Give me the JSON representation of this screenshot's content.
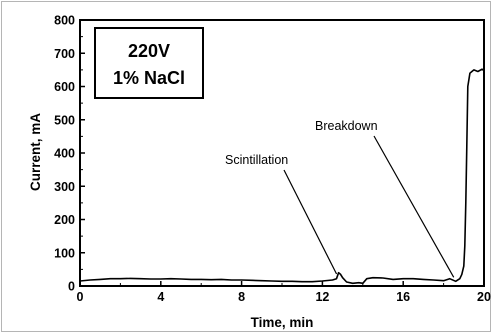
{
  "chart_data": {
    "type": "line",
    "title": "",
    "xlabel": "Time, min",
    "ylabel": "Current, mA",
    "xlim": [
      0,
      20
    ],
    "ylim": [
      0,
      800
    ],
    "xticks": [
      0,
      4,
      8,
      12,
      16,
      20
    ],
    "yticks": [
      0,
      100,
      200,
      300,
      400,
      500,
      600,
      700,
      800
    ],
    "grid": false,
    "legend": "none",
    "inset_text": [
      "220V",
      "1% NaCl"
    ],
    "annotations": [
      {
        "text": "Scintillation",
        "target": [
          12.8,
          30
        ]
      },
      {
        "text": "Breakdown",
        "target": [
          18.6,
          20
        ]
      }
    ],
    "series": [
      {
        "x": [
          0,
          0.5,
          1,
          1.5,
          2,
          2.5,
          3,
          3.5,
          4,
          4.5,
          5,
          5.5,
          6,
          6.5,
          7,
          7.5,
          8,
          8.5,
          9,
          9.5,
          10,
          10.5,
          11,
          11.5,
          12,
          12.5,
          12.7,
          12.8,
          12.9,
          13.0,
          13.2,
          13.5,
          13.8,
          14.0,
          14.2,
          14.5,
          15,
          15.5,
          16,
          16.5,
          17,
          17.5,
          18,
          18.3,
          18.6,
          18.8,
          18.9,
          19.0,
          19.05,
          19.1,
          19.15,
          19.2,
          19.3,
          19.4,
          19.5,
          19.7,
          19.9,
          20.0
        ],
        "values": [
          15,
          18,
          20,
          22,
          22,
          23,
          22,
          21,
          21,
          22,
          21,
          20,
          20,
          19,
          20,
          18,
          18,
          17,
          16,
          15,
          14,
          14,
          13,
          13,
          15,
          18,
          22,
          40,
          35,
          25,
          12,
          8,
          10,
          8,
          22,
          25,
          24,
          20,
          22,
          22,
          20,
          18,
          16,
          22,
          14,
          22,
          35,
          60,
          120,
          250,
          420,
          600,
          640,
          645,
          650,
          645,
          652,
          648
        ]
      }
    ]
  }
}
